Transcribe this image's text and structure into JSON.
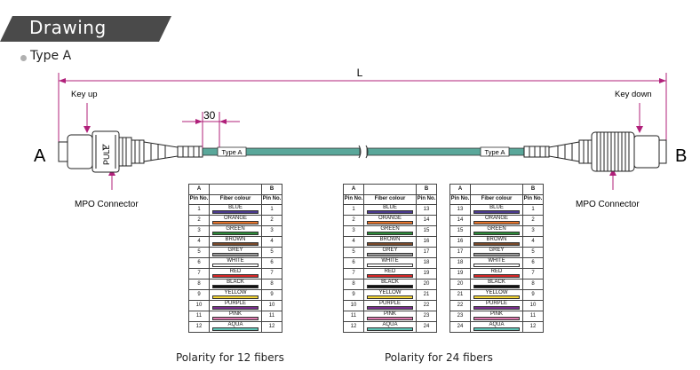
{
  "section_title": "Drawing",
  "type_label": "Type A",
  "colors": {
    "banner": "#4a4a4a",
    "dimension": "#b0207a",
    "cable": "#5aa79a"
  },
  "diagram": {
    "length_label": "L",
    "end_a": "A",
    "end_b": "B",
    "key_up": "Key up",
    "key_down": "Key down",
    "connector_left": "MPO Connector",
    "connector_right": "MPO Connector",
    "pull_label": "PULL",
    "boot_dim": "30",
    "cable_tag_left": "Type A",
    "cable_tag_right": "Type A"
  },
  "headers": {
    "end_a": "A",
    "end_b": "B",
    "pin": "Pin No.",
    "colour": "Fiber colour"
  },
  "fiber_colors": [
    {
      "name": "BLUE",
      "hex": "#4b3a8f"
    },
    {
      "name": "ORANGE",
      "hex": "#e8772e"
    },
    {
      "name": "GREEN",
      "hex": "#2e8b3a"
    },
    {
      "name": "BROWN",
      "hex": "#7a4a2a"
    },
    {
      "name": "GREY",
      "hex": "#9a9a9a"
    },
    {
      "name": "WHITE",
      "hex": "#ffffff"
    },
    {
      "name": "RED",
      "hex": "#d62828"
    },
    {
      "name": "BLACK",
      "hex": "#111111"
    },
    {
      "name": "YELLOW",
      "hex": "#f5d634"
    },
    {
      "name": "PURPLE",
      "hex": "#7b2f8f"
    },
    {
      "name": "PINK",
      "hex": "#e07ab0"
    },
    {
      "name": "AQUA",
      "hex": "#5ec3b5"
    }
  ],
  "table_12": {
    "a": [
      "1",
      "2",
      "3",
      "4",
      "5",
      "6",
      "7",
      "8",
      "9",
      "10",
      "11",
      "12"
    ],
    "b": [
      "1",
      "2",
      "3",
      "4",
      "5",
      "6",
      "7",
      "8",
      "9",
      "10",
      "11",
      "12"
    ]
  },
  "table_24a": {
    "a": [
      "1",
      "2",
      "3",
      "4",
      "5",
      "6",
      "7",
      "8",
      "9",
      "10",
      "11",
      "12"
    ],
    "b": [
      "13",
      "14",
      "15",
      "16",
      "17",
      "18",
      "19",
      "20",
      "21",
      "22",
      "23",
      "24"
    ]
  },
  "table_24b": {
    "a": [
      "13",
      "14",
      "15",
      "16",
      "17",
      "18",
      "19",
      "20",
      "21",
      "22",
      "23",
      "24"
    ],
    "b": [
      "1",
      "2",
      "3",
      "4",
      "5",
      "6",
      "7",
      "8",
      "9",
      "10",
      "11",
      "12"
    ]
  },
  "captions": {
    "twelve": "Polarity for 12 fibers",
    "twentyfour": "Polarity for 24 fibers"
  }
}
